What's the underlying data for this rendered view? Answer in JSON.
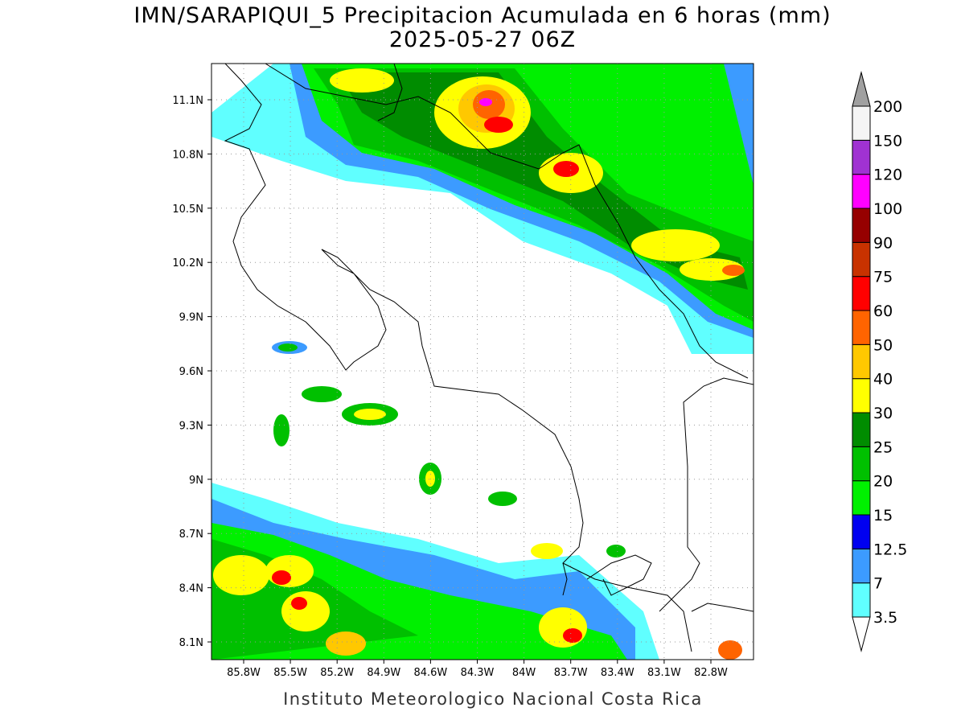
{
  "title": "IMN/SARAPIQUI_5 Precipitacion Acumulada en 6 horas (mm)",
  "subtitle": "2025-05-27 06Z",
  "map": {
    "lat_labels": [
      "11.1N",
      "10.8N",
      "10.5N",
      "10.2N",
      "9.9N",
      "9.6N",
      "9.3N",
      "9N",
      "8.7N",
      "8.4N",
      "8.1N"
    ],
    "lon_labels": [
      "85.8W",
      "85.5W",
      "85.2W",
      "84.9W",
      "84.6W",
      "84.3W",
      "84W",
      "83.7W",
      "83.4W",
      "83.1W",
      "82.8W"
    ]
  },
  "colorbar": {
    "levels": [
      3.5,
      7,
      12.5,
      15,
      20,
      25,
      30,
      40,
      50,
      60,
      75,
      90,
      100,
      120,
      150,
      200
    ],
    "colors": [
      "#60ffff",
      "#3c9bff",
      "#0000f0",
      "#00f000",
      "#00c000",
      "#008c00",
      "#ffff00",
      "#ffc800",
      "#ff6400",
      "#ff0000",
      "#c83200",
      "#960000",
      "#ff00ff",
      "#a032d2",
      "#f5f5f5"
    ]
  },
  "footer": "Instituto Meteorologico Nacional Costa Rica"
}
